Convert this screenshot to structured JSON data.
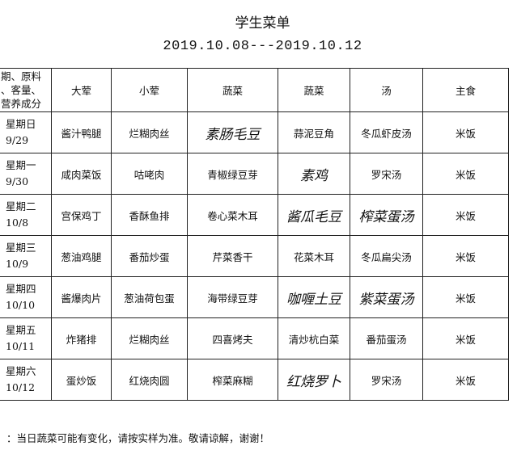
{
  "title": "学生菜单",
  "date_range": "2019.10.08---2019.10.12",
  "table": {
    "corner": [
      "期、原料",
      "、客量、",
      "营养成分"
    ],
    "headers": [
      "大荤",
      "小荤",
      "蔬菜",
      "蔬菜",
      "汤",
      "主食"
    ],
    "rows": [
      {
        "day": "星期日",
        "date": "9/29",
        "cells": [
          "酱汁鸭腿",
          "烂糊肉丝",
          "素肠毛豆",
          "蒜泥豆角",
          "冬瓜虾皮汤",
          "米饭"
        ],
        "handwritten": [
          false,
          false,
          true,
          false,
          false,
          false
        ]
      },
      {
        "day": "星期一",
        "date": "9/30",
        "cells": [
          "咸肉菜饭",
          "咕咾肉",
          "青椒绿豆芽",
          "素鸡",
          "罗宋汤",
          "米饭"
        ],
        "handwritten": [
          false,
          false,
          false,
          true,
          false,
          false
        ]
      },
      {
        "day": "星期二",
        "date": "10/8",
        "cells": [
          "宫保鸡丁",
          "香酥鱼排",
          "卷心菜木耳",
          "酱瓜毛豆",
          "榨菜蛋汤",
          "米饭"
        ],
        "handwritten": [
          false,
          false,
          false,
          true,
          true,
          false
        ]
      },
      {
        "day": "星期三",
        "date": "10/9",
        "cells": [
          "葱油鸡腿",
          "番茄炒蛋",
          "芹菜香干",
          "花菜木耳",
          "冬瓜扁尖汤",
          "米饭"
        ],
        "handwritten": [
          false,
          false,
          false,
          false,
          false,
          false
        ]
      },
      {
        "day": "星期四",
        "date": "10/10",
        "cells": [
          "酱爆肉片",
          "葱油荷包蛋",
          "海带绿豆芽",
          "咖喱土豆",
          "紫菜蛋汤",
          "米饭"
        ],
        "handwritten": [
          false,
          false,
          false,
          true,
          true,
          false
        ]
      },
      {
        "day": "星期五",
        "date": "10/11",
        "cells": [
          "炸猪排",
          "烂糊肉丝",
          "四喜烤夫",
          "清炒杭白菜",
          "番茄蛋汤",
          "米饭"
        ],
        "handwritten": [
          false,
          false,
          false,
          false,
          false,
          false
        ]
      },
      {
        "day": "星期六",
        "date": "10/12",
        "cells": [
          "蛋炒饭",
          "红烧肉圆",
          "榨菜麻糊",
          "红烧罗卜",
          "罗宋汤",
          "米饭"
        ],
        "handwritten": [
          false,
          false,
          false,
          true,
          false,
          false
        ]
      }
    ]
  },
  "note": "：当日蔬菜可能有变化，请按实样为准。敬请谅解，谢谢！"
}
